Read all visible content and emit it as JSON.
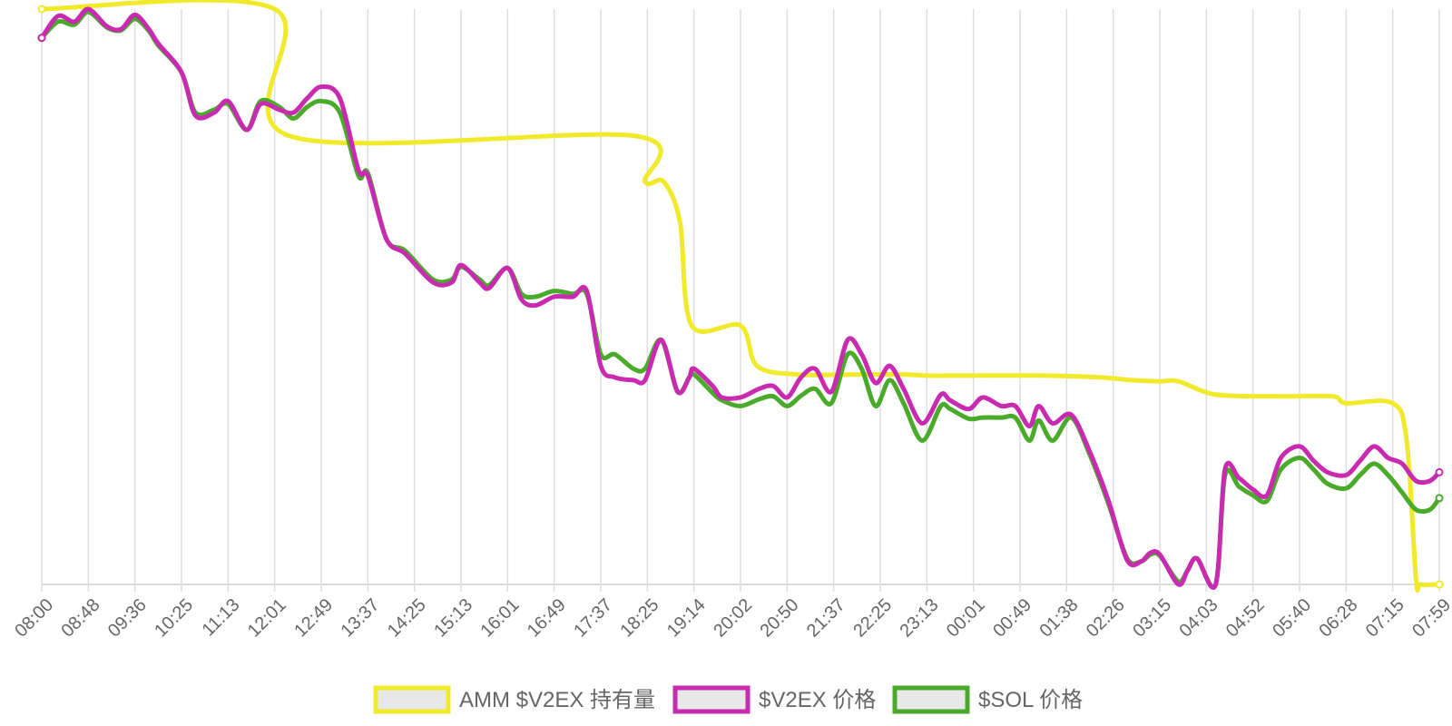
{
  "chart_data": {
    "type": "line",
    "categories": [
      "08:00",
      "08:48",
      "09:36",
      "10:25",
      "11:13",
      "12:01",
      "12:49",
      "13:37",
      "14:25",
      "15:13",
      "16:01",
      "16:49",
      "17:37",
      "18:25",
      "19:14",
      "20:02",
      "20:50",
      "21:37",
      "22:25",
      "23:13",
      "00:01",
      "00:49",
      "01:38",
      "02:26",
      "03:15",
      "04:03",
      "04:52",
      "05:40",
      "06:28",
      "07:15",
      "07:59"
    ],
    "grid": true,
    "legend_position": "bottom",
    "y_axis_labels_visible": false,
    "series": [
      {
        "name": "AMM $V2EX 持有量",
        "color": "#f0ea2a",
        "points": [
          [
            0,
            0
          ],
          [
            5,
            0
          ],
          [
            5.3,
            0.22
          ],
          [
            12.7,
            0.22
          ],
          [
            12.95,
            0.3
          ],
          [
            13.35,
            0.3
          ],
          [
            13.7,
            0.37
          ],
          [
            13.95,
            0.55
          ],
          [
            15.0,
            0.55
          ],
          [
            15.35,
            0.62
          ],
          [
            16.2,
            0.635
          ],
          [
            17.5,
            0.635
          ],
          [
            18.5,
            0.635
          ],
          [
            19,
            0.637
          ],
          [
            20,
            0.637
          ],
          [
            21.5,
            0.637
          ],
          [
            22.7,
            0.64
          ],
          [
            23.4,
            0.645
          ],
          [
            24.0,
            0.647
          ],
          [
            24.4,
            0.647
          ],
          [
            25.2,
            0.67
          ],
          [
            26.5,
            0.673
          ],
          [
            27.7,
            0.673
          ],
          [
            28.0,
            0.685
          ],
          [
            29.0,
            0.685
          ],
          [
            29.3,
            0.75
          ],
          [
            29.5,
            0.99
          ],
          [
            29.6,
            1
          ],
          [
            30,
            1
          ]
        ]
      },
      {
        "name": "$V2EX 价格",
        "color": "#c82ab0",
        "points": [
          [
            0,
            0.05
          ],
          [
            0.35,
            0.012
          ],
          [
            0.7,
            0.022
          ],
          [
            1.0,
            0.0
          ],
          [
            1.4,
            0.03
          ],
          [
            1.7,
            0.035
          ],
          [
            2.0,
            0.01
          ],
          [
            2.3,
            0.035
          ],
          [
            2.5,
            0.06
          ],
          [
            3.0,
            0.11
          ],
          [
            3.3,
            0.185
          ],
          [
            3.7,
            0.18
          ],
          [
            4.0,
            0.16
          ],
          [
            4.4,
            0.21
          ],
          [
            4.7,
            0.165
          ],
          [
            5.1,
            0.175
          ],
          [
            5.4,
            0.18
          ],
          [
            5.7,
            0.155
          ],
          [
            6.0,
            0.135
          ],
          [
            6.4,
            0.155
          ],
          [
            6.8,
            0.28
          ],
          [
            7.0,
            0.29
          ],
          [
            7.4,
            0.4
          ],
          [
            7.8,
            0.425
          ],
          [
            8.4,
            0.475
          ],
          [
            8.8,
            0.475
          ],
          [
            9.0,
            0.445
          ],
          [
            9.4,
            0.475
          ],
          [
            9.6,
            0.485
          ],
          [
            10.0,
            0.45
          ],
          [
            10.3,
            0.505
          ],
          [
            10.6,
            0.515
          ],
          [
            11.0,
            0.5
          ],
          [
            11.4,
            0.5
          ],
          [
            11.7,
            0.49
          ],
          [
            12.0,
            0.62
          ],
          [
            12.3,
            0.64
          ],
          [
            12.7,
            0.645
          ],
          [
            12.95,
            0.645
          ],
          [
            13.3,
            0.575
          ],
          [
            13.65,
            0.665
          ],
          [
            13.9,
            0.64
          ],
          [
            14.0,
            0.625
          ],
          [
            14.4,
            0.655
          ],
          [
            14.6,
            0.675
          ],
          [
            15.0,
            0.675
          ],
          [
            15.4,
            0.66
          ],
          [
            15.7,
            0.655
          ],
          [
            16.0,
            0.675
          ],
          [
            16.3,
            0.64
          ],
          [
            16.6,
            0.625
          ],
          [
            16.95,
            0.665
          ],
          [
            17.3,
            0.575
          ],
          [
            17.6,
            0.6
          ],
          [
            17.9,
            0.65
          ],
          [
            18.2,
            0.62
          ],
          [
            18.5,
            0.66
          ],
          [
            18.9,
            0.72
          ],
          [
            19.3,
            0.67
          ],
          [
            19.5,
            0.68
          ],
          [
            19.9,
            0.695
          ],
          [
            20.2,
            0.675
          ],
          [
            20.6,
            0.69
          ],
          [
            20.9,
            0.69
          ],
          [
            21.2,
            0.725
          ],
          [
            21.4,
            0.69
          ],
          [
            21.7,
            0.72
          ],
          [
            22.1,
            0.705
          ],
          [
            22.5,
            0.77
          ],
          [
            22.9,
            0.855
          ],
          [
            23.3,
            0.958
          ],
          [
            23.6,
            0.96
          ],
          [
            23.8,
            0.945
          ],
          [
            24.0,
            0.948
          ],
          [
            24.4,
            1.0
          ],
          [
            24.6,
            0.975
          ],
          [
            24.8,
            0.955
          ],
          [
            25.2,
            1.0
          ],
          [
            25.4,
            0.8
          ],
          [
            25.7,
            0.815
          ],
          [
            26.0,
            0.835
          ],
          [
            26.3,
            0.845
          ],
          [
            26.6,
            0.78
          ],
          [
            27.0,
            0.76
          ],
          [
            27.3,
            0.785
          ],
          [
            27.6,
            0.805
          ],
          [
            28.0,
            0.81
          ],
          [
            28.3,
            0.785
          ],
          [
            28.6,
            0.76
          ],
          [
            28.9,
            0.78
          ],
          [
            29.2,
            0.79
          ],
          [
            29.5,
            0.82
          ],
          [
            29.8,
            0.82
          ],
          [
            30.0,
            0.805
          ]
        ]
      },
      {
        "name": "$SOL 价格",
        "color": "#4aaa2a",
        "points": [
          [
            0,
            0.05
          ],
          [
            0.35,
            0.022
          ],
          [
            0.7,
            0.027
          ],
          [
            1.0,
            0.005
          ],
          [
            1.4,
            0.032
          ],
          [
            1.7,
            0.037
          ],
          [
            2.0,
            0.017
          ],
          [
            2.3,
            0.038
          ],
          [
            2.5,
            0.063
          ],
          [
            3.0,
            0.11
          ],
          [
            3.3,
            0.18
          ],
          [
            3.7,
            0.175
          ],
          [
            4.0,
            0.165
          ],
          [
            4.4,
            0.21
          ],
          [
            4.7,
            0.16
          ],
          [
            5.1,
            0.17
          ],
          [
            5.4,
            0.19
          ],
          [
            5.7,
            0.17
          ],
          [
            6.0,
            0.16
          ],
          [
            6.4,
            0.18
          ],
          [
            6.8,
            0.29
          ],
          [
            7.0,
            0.285
          ],
          [
            7.4,
            0.4
          ],
          [
            7.8,
            0.42
          ],
          [
            8.4,
            0.47
          ],
          [
            8.8,
            0.47
          ],
          [
            9.0,
            0.448
          ],
          [
            9.4,
            0.47
          ],
          [
            9.6,
            0.48
          ],
          [
            10.0,
            0.45
          ],
          [
            10.3,
            0.495
          ],
          [
            10.6,
            0.5
          ],
          [
            11.0,
            0.49
          ],
          [
            11.4,
            0.495
          ],
          [
            11.7,
            0.495
          ],
          [
            12.0,
            0.6
          ],
          [
            12.3,
            0.6
          ],
          [
            12.7,
            0.625
          ],
          [
            12.95,
            0.625
          ],
          [
            13.3,
            0.575
          ],
          [
            13.65,
            0.665
          ],
          [
            13.9,
            0.64
          ],
          [
            14.0,
            0.635
          ],
          [
            14.4,
            0.667
          ],
          [
            14.6,
            0.68
          ],
          [
            15.0,
            0.69
          ],
          [
            15.4,
            0.678
          ],
          [
            15.7,
            0.673
          ],
          [
            16.0,
            0.69
          ],
          [
            16.3,
            0.672
          ],
          [
            16.6,
            0.66
          ],
          [
            16.95,
            0.685
          ],
          [
            17.3,
            0.6
          ],
          [
            17.6,
            0.625
          ],
          [
            17.9,
            0.69
          ],
          [
            18.2,
            0.645
          ],
          [
            18.5,
            0.685
          ],
          [
            18.9,
            0.75
          ],
          [
            19.3,
            0.69
          ],
          [
            19.5,
            0.695
          ],
          [
            19.9,
            0.712
          ],
          [
            20.2,
            0.71
          ],
          [
            20.6,
            0.71
          ],
          [
            20.9,
            0.71
          ],
          [
            21.2,
            0.75
          ],
          [
            21.4,
            0.715
          ],
          [
            21.7,
            0.75
          ],
          [
            22.1,
            0.71
          ],
          [
            22.5,
            0.775
          ],
          [
            22.9,
            0.86
          ],
          [
            23.3,
            0.955
          ],
          [
            23.6,
            0.96
          ],
          [
            23.8,
            0.948
          ],
          [
            24.0,
            0.95
          ],
          [
            24.4,
            0.995
          ],
          [
            24.6,
            0.975
          ],
          [
            24.8,
            0.955
          ],
          [
            25.2,
            1.0
          ],
          [
            25.4,
            0.81
          ],
          [
            25.7,
            0.83
          ],
          [
            26.0,
            0.845
          ],
          [
            26.3,
            0.855
          ],
          [
            26.6,
            0.8
          ],
          [
            27.0,
            0.78
          ],
          [
            27.3,
            0.8
          ],
          [
            27.6,
            0.825
          ],
          [
            28.0,
            0.833
          ],
          [
            28.3,
            0.81
          ],
          [
            28.6,
            0.79
          ],
          [
            28.9,
            0.81
          ],
          [
            29.2,
            0.84
          ],
          [
            29.5,
            0.87
          ],
          [
            29.8,
            0.87
          ],
          [
            30.0,
            0.85
          ]
        ]
      }
    ]
  }
}
